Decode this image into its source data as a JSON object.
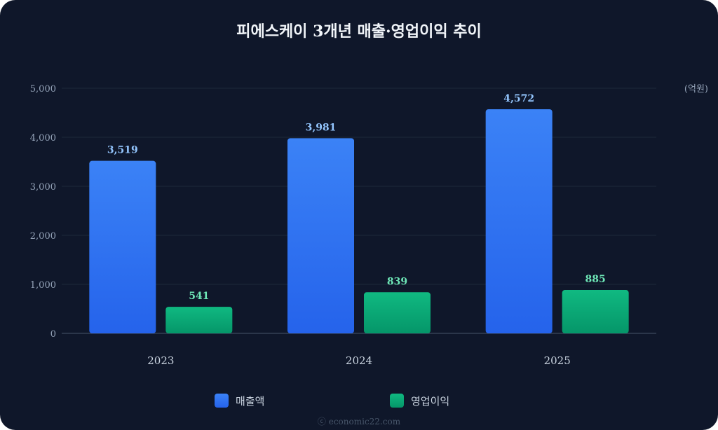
{
  "chart_data": {
    "type": "bar",
    "title": "피에스케이 3개년 매출·영업이익 추이",
    "unit": "(억원)",
    "categories": [
      "2023",
      "2024",
      "2025"
    ],
    "series": [
      {
        "name": "매출액",
        "values": [
          3519,
          3981,
          4572
        ],
        "color": "#3b82f6",
        "label_color": "#93c5fd",
        "labels": [
          "3,519",
          "3,981",
          "4,572"
        ]
      },
      {
        "name": "영업이익",
        "values": [
          541,
          839,
          885
        ],
        "color": "#10b981",
        "label_color": "#6ee7b7",
        "labels": [
          "541",
          "839",
          "885"
        ]
      }
    ],
    "y_ticks": [
      0,
      1000,
      2000,
      3000,
      4000,
      5000
    ],
    "y_tick_labels": [
      "0",
      "1,000",
      "2,000",
      "3,000",
      "4,000",
      "5,000"
    ],
    "ylim": [
      0,
      5000
    ],
    "grid": true,
    "legend_position": "bottom"
  },
  "footer": {
    "credit": "ⓒ economic22.com"
  }
}
